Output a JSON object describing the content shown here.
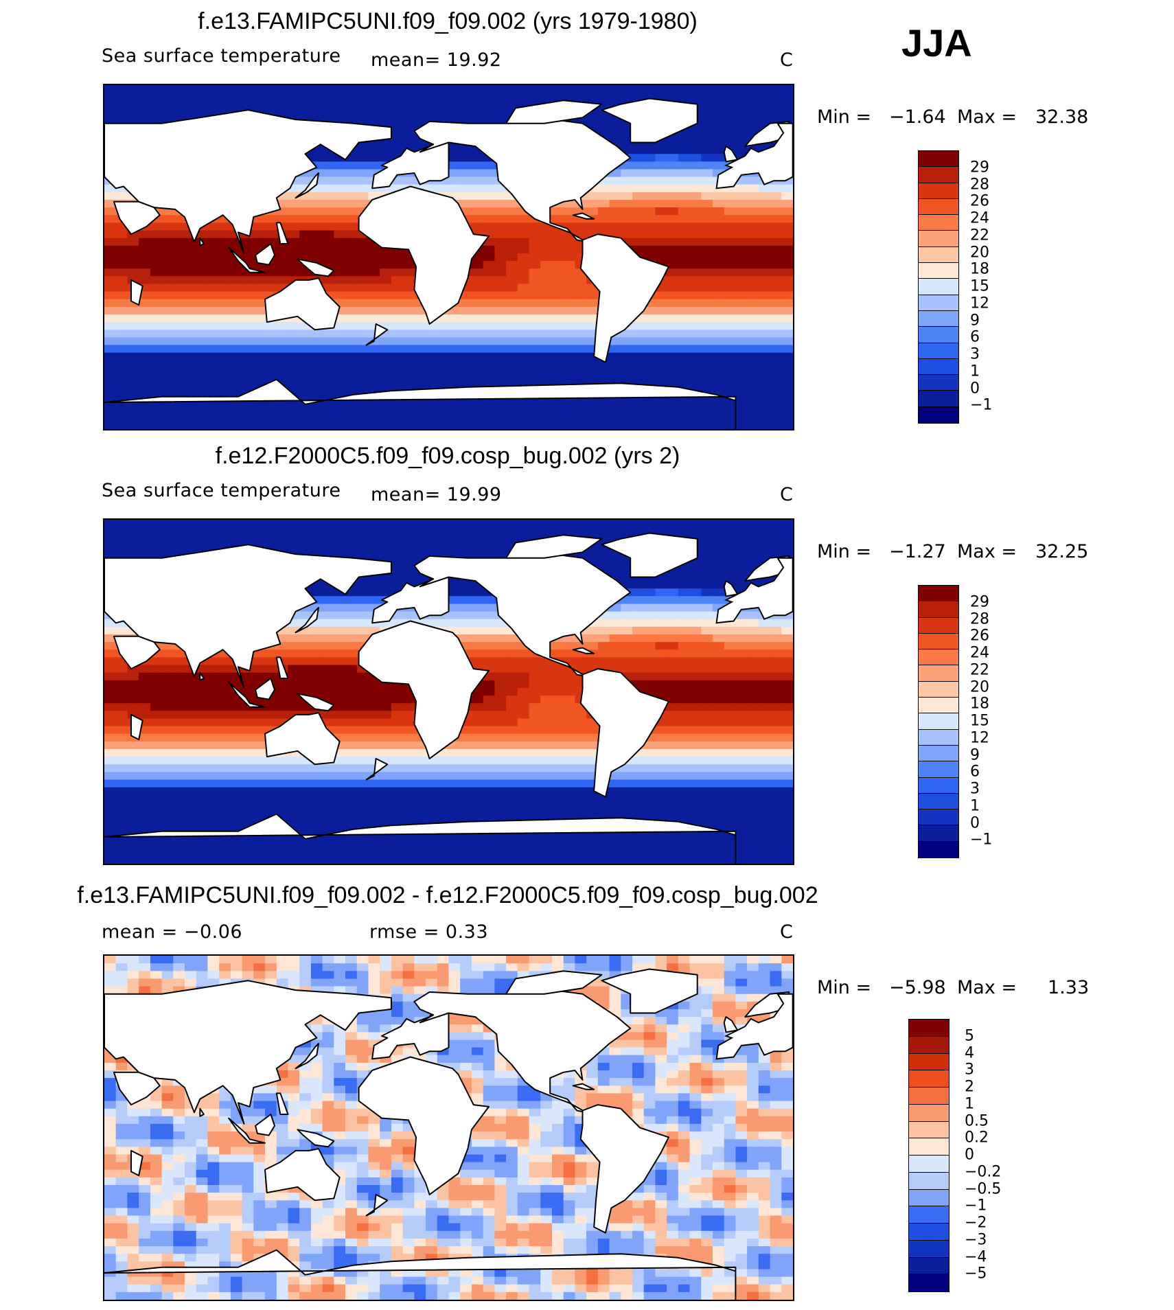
{
  "season": "JJA",
  "colors": {
    "sst_levels": [
      "#000080",
      "#0a1e9c",
      "#1435c0",
      "#1f4fe0",
      "#2f66f2",
      "#4f84f6",
      "#7fa4fa",
      "#a8c3fb",
      "#d6e6fb",
      "#fde8d8",
      "#fcc7a5",
      "#fba27a",
      "#f97a45",
      "#f05522",
      "#d93510",
      "#b8200a",
      "#800000"
    ],
    "diff_levels": [
      "#000080",
      "#0a1e9c",
      "#1435c0",
      "#1f4fe0",
      "#3a6cf3",
      "#7fa4fa",
      "#b5ccfb",
      "#d9e6fb",
      "#fde6d6",
      "#fcc3a2",
      "#f99a70",
      "#f57040",
      "#ec4e1c",
      "#d12e0a",
      "#a31808",
      "#800000"
    ],
    "land": "#ffffff",
    "coast": "#000000"
  },
  "panels": [
    {
      "title": "f.e13.FAMIPC5UNI.f09_f09.002 (yrs 1979-1980)",
      "variable": "Sea surface temperature",
      "stat1": "mean=   19.92",
      "stat2": "",
      "units": "C",
      "min_label": "Min  =",
      "min_value": "−1.64",
      "max_label": "Max  =",
      "max_value": "32.38",
      "colorbar_labels": [
        "29",
        "28",
        "26",
        "24",
        "22",
        "20",
        "18",
        "15",
        "12",
        "9",
        "6",
        "3",
        "1",
        "0",
        "−1"
      ]
    },
    {
      "title": "f.e12.F2000C5.f09_f09.cosp_bug.002 (yrs 2)",
      "variable": "Sea surface temperature",
      "stat1": "mean=   19.99",
      "stat2": "",
      "units": "C",
      "min_label": "Min  =",
      "min_value": "−1.27",
      "max_label": "Max  =",
      "max_value": "32.25",
      "colorbar_labels": [
        "29",
        "28",
        "26",
        "24",
        "22",
        "20",
        "18",
        "15",
        "12",
        "9",
        "6",
        "3",
        "1",
        "0",
        "−1"
      ]
    },
    {
      "title": "f.e13.FAMIPC5UNI.f09_f09.002 - f.e12.F2000C5.f09_f09.cosp_bug.002",
      "variable": "",
      "stat1": "mean  =   −0.06",
      "stat2": "rmse  =    0.33",
      "units": "C",
      "min_label": "Min  =",
      "min_value": "−5.98",
      "max_label": "Max  =",
      "max_value": "1.33",
      "colorbar_labels": [
        "5",
        "4",
        "3",
        "2",
        "1",
        "0.5",
        "0.2",
        "0",
        "−0.2",
        "−0.5",
        "−1",
        "−2",
        "−3",
        "−4",
        "−5"
      ]
    }
  ],
  "chart_data": [
    {
      "type": "heatmap",
      "title": "f.e13.FAMIPC5UNI.f09_f09.002 (yrs 1979-1980)",
      "variable": "Sea surface temperature",
      "units": "C",
      "mean": 19.92,
      "min": -1.64,
      "max": 32.38,
      "levels": [
        -1,
        0,
        1,
        3,
        6,
        9,
        12,
        15,
        18,
        20,
        22,
        24,
        26,
        28,
        29
      ],
      "projection": "cylindrical equidistant, Pacific-centred",
      "description_of_field": "warmest (>29 C) in western Pacific warm pool and northern Indian Ocean; coldest (<0 C) near Antarctica and Arctic"
    },
    {
      "type": "heatmap",
      "title": "f.e12.F2000C5.f09_f09.cosp_bug.002 (yrs 2)",
      "variable": "Sea surface temperature",
      "units": "C",
      "mean": 19.99,
      "min": -1.27,
      "max": 32.25,
      "levels": [
        -1,
        0,
        1,
        3,
        6,
        9,
        12,
        15,
        18,
        20,
        22,
        24,
        26,
        28,
        29
      ],
      "projection": "cylindrical equidistant, Pacific-centred"
    },
    {
      "type": "heatmap",
      "title": "f.e13.FAMIPC5UNI.f09_f09.002 - f.e12.F2000C5.f09_f09.cosp_bug.002",
      "units": "C",
      "mean": -0.06,
      "rmse": 0.33,
      "min": -5.98,
      "max": 1.33,
      "levels": [
        -5,
        -4,
        -3,
        -2,
        -1,
        -0.5,
        -0.2,
        0,
        0.2,
        0.5,
        1,
        2,
        3,
        4,
        5
      ],
      "projection": "cylindrical equidistant, Pacific-centred"
    }
  ]
}
